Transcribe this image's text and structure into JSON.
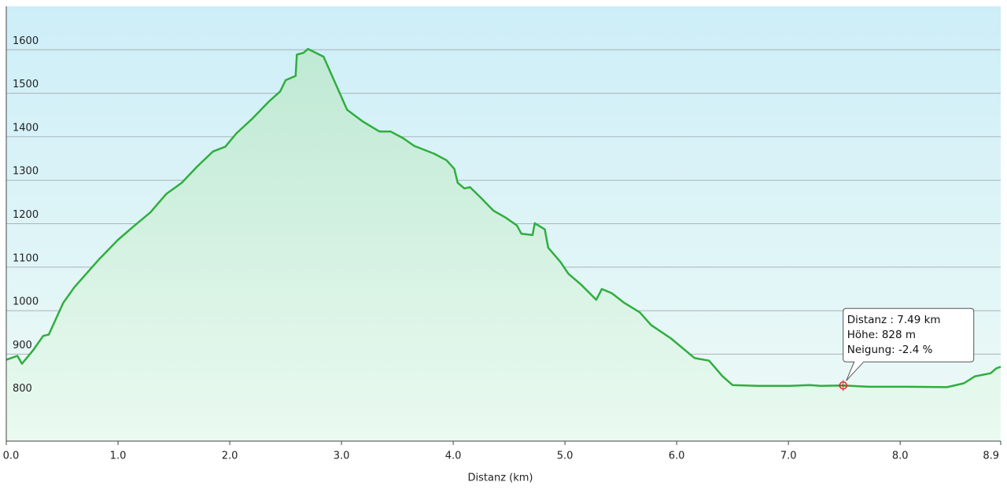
{
  "chart_data": {
    "type": "area",
    "x_label": "Distanz  (km)",
    "x": [
      0,
      0.1,
      0.14,
      0.24,
      0.33,
      0.38,
      0.51,
      0.61,
      0.83,
      1.0,
      1.14,
      1.29,
      1.43,
      1.57,
      1.71,
      1.85,
      1.96,
      2.06,
      2.2,
      2.35,
      2.45,
      2.5,
      2.59,
      2.6,
      2.66,
      2.7,
      2.84,
      3.05,
      3.19,
      3.34,
      3.44,
      3.55,
      3.65,
      3.83,
      3.94,
      4.01,
      4.04,
      4.1,
      4.15,
      4.25,
      4.36,
      4.47,
      4.57,
      4.61,
      4.71,
      4.73,
      4.82,
      4.85,
      4.96,
      5.03,
      5.14,
      5.28,
      5.33,
      5.42,
      5.53,
      5.67,
      5.77,
      5.95,
      6.16,
      6.29,
      6.41,
      6.5,
      6.73,
      7.01,
      7.19,
      7.29,
      7.49,
      7.72,
      8.07,
      8.42,
      8.57,
      8.67,
      8.81,
      8.86,
      8.9
    ],
    "y": [
      887,
      896,
      878,
      909,
      942,
      945,
      1018,
      1054,
      1118,
      1163,
      1194,
      1226,
      1268,
      1294,
      1332,
      1366,
      1377,
      1408,
      1441,
      1481,
      1504,
      1530,
      1540,
      1589,
      1593,
      1602,
      1584,
      1462,
      1435,
      1412,
      1412,
      1397,
      1379,
      1361,
      1346,
      1326,
      1294,
      1281,
      1284,
      1259,
      1230,
      1214,
      1196,
      1177,
      1174,
      1201,
      1187,
      1145,
      1112,
      1085,
      1061,
      1025,
      1050,
      1040,
      1018,
      996,
      967,
      936,
      891,
      885,
      849,
      829,
      827,
      827,
      829,
      827,
      828,
      825,
      825,
      824,
      833,
      849,
      856,
      867,
      871
    ],
    "color": "#2fae3e",
    "xlim": [
      0,
      8.9
    ],
    "xticks": [
      {
        "value": 0,
        "label": "0.0"
      },
      {
        "value": 1,
        "label": "1.0"
      },
      {
        "value": 2,
        "label": "2.0"
      },
      {
        "value": 3,
        "label": "3.0"
      },
      {
        "value": 4,
        "label": "4.0"
      },
      {
        "value": 5,
        "label": "5.0"
      },
      {
        "value": 6,
        "label": "6.0"
      },
      {
        "value": 7,
        "label": "7.0"
      },
      {
        "value": 8,
        "label": "8.0"
      },
      {
        "value": 8.9,
        "label": "8.9"
      }
    ],
    "ylim": [
      700,
      1700
    ],
    "yticks": [
      800,
      900,
      1000,
      1100,
      1200,
      1300,
      1400,
      1500,
      1600
    ],
    "grid": true,
    "highlight": {
      "x": 7.49,
      "y": 828,
      "color": "#e0282b",
      "lines": [
        "Distanz  : 7.49 km",
        "Höhe: 828 m",
        "Neigung: -2.4 %"
      ]
    }
  }
}
